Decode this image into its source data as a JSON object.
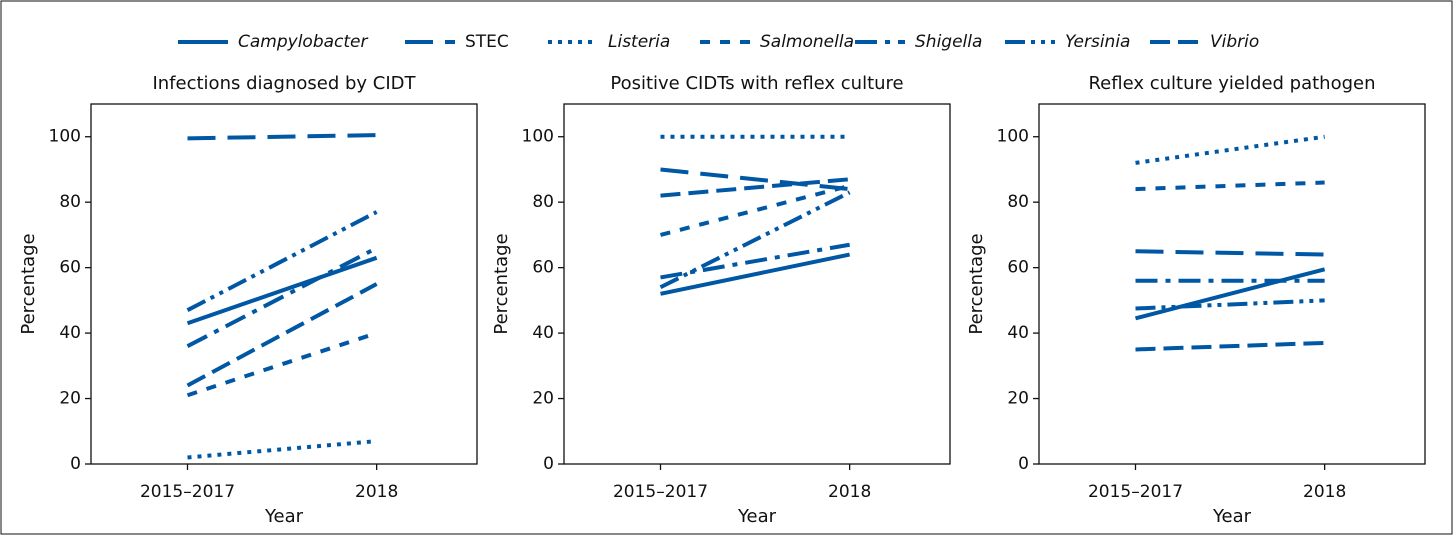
{
  "chart_data": [
    {
      "type": "line",
      "title": "Infections diagnosed by CIDT",
      "xlabel": "Year",
      "ylabel": "Percentage",
      "categories": [
        "2015–2017",
        "2018"
      ],
      "ylim": [
        0,
        110
      ],
      "yticks": [
        0,
        20,
        40,
        60,
        80,
        100
      ],
      "series": [
        {
          "name": "Campylobacter",
          "color": "#0057a4",
          "linestyle": "solid",
          "font_style": "italic",
          "values": [
            43,
            63
          ]
        },
        {
          "name": "STEC",
          "color": "#0057a4",
          "linestyle": "long-dash",
          "font_style": "normal",
          "values": [
            99.5,
            100.5
          ]
        },
        {
          "name": "Listeria",
          "color": "#0057a4",
          "linestyle": "dotted",
          "font_style": "italic",
          "values": [
            2,
            7
          ]
        },
        {
          "name": "Salmonella",
          "color": "#0057a4",
          "linestyle": "dashed",
          "font_style": "italic",
          "values": [
            21,
            40
          ]
        },
        {
          "name": "Shigella",
          "color": "#0057a4",
          "linestyle": "dash-dot",
          "font_style": "italic",
          "values": [
            36,
            66
          ]
        },
        {
          "name": "Yersinia",
          "color": "#0057a4",
          "linestyle": "dash-dot-dot",
          "font_style": "italic",
          "values": [
            47,
            77
          ]
        },
        {
          "name": "Vibrio",
          "color": "#0057a4",
          "linestyle": "dash",
          "font_style": "italic",
          "values": [
            24,
            55
          ]
        }
      ]
    },
    {
      "type": "line",
      "title": "Positive CIDTs with reflex culture",
      "xlabel": "Year",
      "ylabel": "Percentage",
      "categories": [
        "2015–2017",
        "2018"
      ],
      "ylim": [
        0,
        110
      ],
      "yticks": [
        0,
        20,
        40,
        60,
        80,
        100
      ],
      "series": [
        {
          "name": "Campylobacter",
          "color": "#0057a4",
          "linestyle": "solid",
          "values": [
            52,
            64
          ]
        },
        {
          "name": "STEC",
          "color": "#0057a4",
          "linestyle": "long-dash",
          "values": [
            90,
            84
          ]
        },
        {
          "name": "Listeria",
          "color": "#0057a4",
          "linestyle": "dotted",
          "values": [
            100,
            100
          ]
        },
        {
          "name": "Salmonella",
          "color": "#0057a4",
          "linestyle": "dashed",
          "values": [
            70,
            85
          ]
        },
        {
          "name": "Shigella",
          "color": "#0057a4",
          "linestyle": "dash-dot",
          "values": [
            57,
            67
          ]
        },
        {
          "name": "Yersinia",
          "color": "#0057a4",
          "linestyle": "dash-dot-dot",
          "values": [
            54,
            83
          ]
        },
        {
          "name": "Vibrio",
          "color": "#0057a4",
          "linestyle": "dash",
          "values": [
            82,
            87
          ]
        }
      ]
    },
    {
      "type": "line",
      "title": "Reflex culture yielded pathogen",
      "xlabel": "Year",
      "ylabel": "Percentage",
      "categories": [
        "2015–2017",
        "2018"
      ],
      "ylim": [
        0,
        110
      ],
      "yticks": [
        0,
        20,
        40,
        60,
        80,
        100
      ],
      "series": [
        {
          "name": "Campylobacter",
          "color": "#0057a4",
          "linestyle": "solid",
          "values": [
            44.5,
            59.5
          ]
        },
        {
          "name": "STEC",
          "color": "#0057a4",
          "linestyle": "long-dash",
          "values": [
            65,
            64
          ]
        },
        {
          "name": "Listeria",
          "color": "#0057a4",
          "linestyle": "dotted",
          "values": [
            92,
            100
          ]
        },
        {
          "name": "Salmonella",
          "color": "#0057a4",
          "linestyle": "dashed",
          "values": [
            84,
            86
          ]
        },
        {
          "name": "Shigella",
          "color": "#0057a4",
          "linestyle": "dash-dot",
          "values": [
            56,
            56
          ]
        },
        {
          "name": "Yersinia",
          "color": "#0057a4",
          "linestyle": "dash-dot-dot",
          "values": [
            47.5,
            50
          ]
        },
        {
          "name": "Vibrio",
          "color": "#0057a4",
          "linestyle": "dash",
          "values": [
            35,
            37
          ]
        }
      ]
    }
  ]
}
